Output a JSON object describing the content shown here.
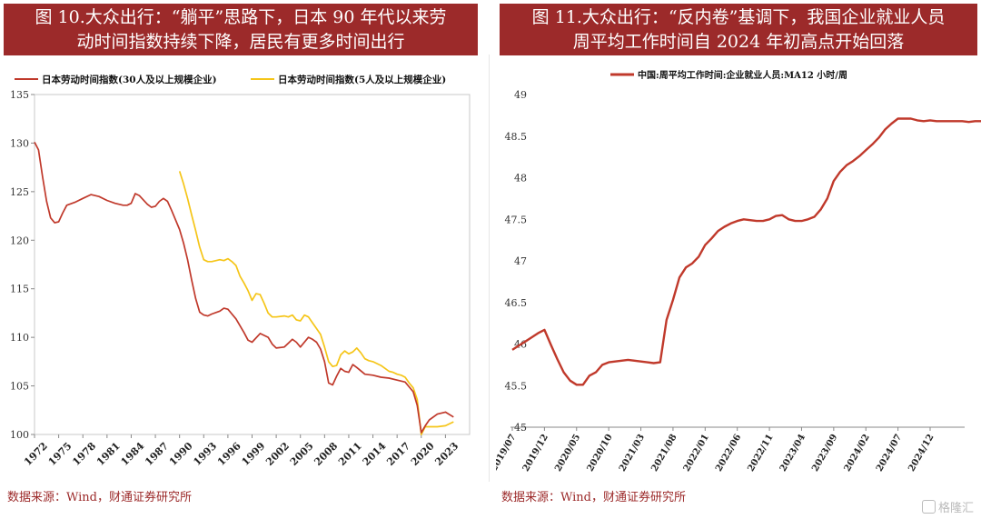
{
  "chart_data": [
    {
      "type": "line",
      "title_lines": [
        "图 10.大众出行：“躺平”思路下，日本 90 年代以来劳",
        "动时间指数持续下降，居民有更多时间出行"
      ],
      "ylim": [
        100,
        135
      ],
      "xlim": [
        1972,
        2026
      ],
      "yticks": [
        "100",
        "105",
        "110",
        "115",
        "120",
        "125",
        "130",
        "135"
      ],
      "xticks": [
        "1972",
        "1975",
        "1978",
        "1981",
        "1984",
        "1987",
        "1990",
        "1993",
        "1996",
        "1999",
        "2002",
        "2005",
        "2008",
        "2011",
        "2014",
        "2017",
        "2020",
        "2023"
      ],
      "legend_position": "top",
      "colors": {
        "series_1": "#c0392b",
        "series_2": "#f5c518"
      },
      "series": [
        {
          "name": "日本劳动时间指数(30人及以上规模企业)",
          "x": [
            1972,
            1972.5,
            1973,
            1973.5,
            1974,
            1974.5,
            1975,
            1975.5,
            1976,
            1977,
            1978,
            1979,
            1980,
            1981,
            1982,
            1983,
            1983.5,
            1984,
            1984.5,
            1985,
            1986,
            1986.5,
            1987,
            1987.5,
            1988,
            1988.5,
            1989,
            1990,
            1990.5,
            1991,
            1991.5,
            1992,
            1992.5,
            1993,
            1993.5,
            1994,
            1995,
            1995.5,
            1996,
            1997,
            1997.5,
            1998,
            1998.5,
            1999,
            2000,
            2001,
            2001.5,
            2002,
            2003,
            2003.5,
            2004,
            2004.5,
            2005,
            2006,
            2006.5,
            2007,
            2007.5,
            2008,
            2008.5,
            2009,
            2009.5,
            2010,
            2010.5,
            2011,
            2011.5,
            2012,
            2013,
            2014,
            2015,
            2016,
            2017,
            2018,
            2019,
            2019.5,
            2020,
            2020.5,
            2021,
            2022,
            2023,
            2024
          ],
          "values": [
            130.1,
            129.3,
            126.5,
            124.0,
            122.3,
            121.8,
            121.9,
            122.8,
            123.6,
            123.9,
            124.3,
            124.7,
            124.5,
            124.1,
            123.8,
            123.6,
            123.6,
            123.8,
            124.8,
            124.6,
            123.7,
            123.4,
            123.5,
            124.0,
            124.3,
            124.0,
            123.1,
            121.1,
            119.7,
            118.0,
            115.9,
            114.0,
            112.6,
            112.3,
            112.2,
            112.4,
            112.7,
            113.0,
            112.9,
            111.9,
            111.2,
            110.5,
            109.7,
            109.5,
            110.4,
            110.0,
            109.3,
            108.9,
            109.0,
            109.4,
            109.8,
            109.5,
            109.0,
            110.0,
            109.8,
            109.5,
            108.8,
            107.5,
            105.3,
            105.1,
            106.0,
            106.8,
            106.5,
            106.4,
            107.2,
            106.9,
            106.2,
            106.1,
            105.9,
            105.8,
            105.6,
            105.4,
            104.4,
            103.0,
            100.2,
            100.9,
            101.5,
            102.1,
            102.3,
            101.8
          ]
        },
        {
          "name": "日本劳动时间指数(5人及以上规模企业)",
          "x": [
            1990,
            1990.5,
            1991,
            1991.5,
            1992,
            1992.5,
            1993,
            1993.5,
            1994,
            1995,
            1995.5,
            1996,
            1996.5,
            1997,
            1997.5,
            1998,
            1998.5,
            1999,
            1999.5,
            2000,
            2000.5,
            2001,
            2001.5,
            2002,
            2003,
            2003.5,
            2004,
            2004.5,
            2005,
            2005.5,
            2006,
            2006.5,
            2007,
            2007.5,
            2008,
            2008.5,
            2009,
            2009.5,
            2010,
            2010.5,
            2011,
            2011.5,
            2012,
            2012.5,
            2013,
            2013.5,
            2014,
            2014.5,
            2015,
            2015.5,
            2016,
            2016.5,
            2017,
            2017.5,
            2018,
            2018.5,
            2019,
            2019.5,
            2020,
            2020.5,
            2021,
            2022,
            2023,
            2024
          ],
          "values": [
            127.1,
            125.8,
            124.3,
            122.6,
            121.0,
            119.3,
            118.0,
            117.8,
            117.8,
            118.0,
            117.9,
            118.1,
            117.8,
            117.4,
            116.3,
            115.6,
            114.8,
            113.8,
            114.5,
            114.4,
            113.5,
            112.5,
            112.1,
            112.1,
            112.2,
            112.1,
            112.3,
            111.8,
            111.7,
            112.3,
            112.1,
            111.5,
            110.9,
            110.3,
            109.0,
            107.5,
            107.0,
            107.1,
            108.2,
            108.6,
            108.3,
            108.5,
            108.9,
            108.4,
            107.8,
            107.6,
            107.5,
            107.3,
            107.1,
            106.8,
            106.5,
            106.4,
            106.2,
            106.1,
            105.9,
            105.3,
            104.8,
            103.6,
            100.0,
            100.8,
            100.8,
            100.8,
            100.9,
            101.3
          ]
        }
      ],
      "source": "数据来源：Wind，财通证券研究所"
    },
    {
      "type": "line",
      "title_lines": [
        "图 11.大众出行：“反内卷”基调下，我国企业就业人员",
        "周平均工作时间自 2024 年初高点开始回落"
      ],
      "ylim": [
        45,
        49
      ],
      "yticks": [
        "45",
        "45.5",
        "46",
        "46.5",
        "47",
        "47.5",
        "48",
        "48.5",
        "49"
      ],
      "xticks": [
        "2019/07",
        "2019/12",
        "2020/05",
        "2020/10",
        "2021/03",
        "2021/08",
        "2022/01",
        "2022/06",
        "2022/11",
        "2023/04",
        "2023/09",
        "2024/02",
        "2024/07",
        "2024/12"
      ],
      "x_start": "2019/07",
      "legend_position": "top",
      "colors": {
        "series_1": "#c0392b"
      },
      "series": [
        {
          "name": "中国:周平均工作时间:企业就业人员:MA12 小时/周",
          "values": [
            45.93,
            45.98,
            46.03,
            46.08,
            46.13,
            46.17,
            45.99,
            45.82,
            45.66,
            45.56,
            45.51,
            45.51,
            45.62,
            45.66,
            45.75,
            45.78,
            45.79,
            45.8,
            45.81,
            45.8,
            45.79,
            45.78,
            45.77,
            45.78,
            46.29,
            46.53,
            46.8,
            46.92,
            46.97,
            47.05,
            47.19,
            47.27,
            47.36,
            47.41,
            47.45,
            47.48,
            47.5,
            47.49,
            47.48,
            47.48,
            47.5,
            47.54,
            47.55,
            47.5,
            47.48,
            47.48,
            47.5,
            47.53,
            47.62,
            47.75,
            47.96,
            48.07,
            48.15,
            48.2,
            48.26,
            48.33,
            48.4,
            48.48,
            48.58,
            48.65,
            48.71,
            48.71,
            48.71,
            48.69,
            48.68,
            48.69,
            48.68,
            48.68,
            48.68,
            48.68,
            48.68,
            48.67,
            48.68,
            48.68,
            48.68,
            48.62,
            48.61,
            48.6,
            48.58
          ]
        }
      ],
      "source": "数据来源：Wind，财通证券研究所"
    }
  ],
  "watermark": "格隆汇"
}
